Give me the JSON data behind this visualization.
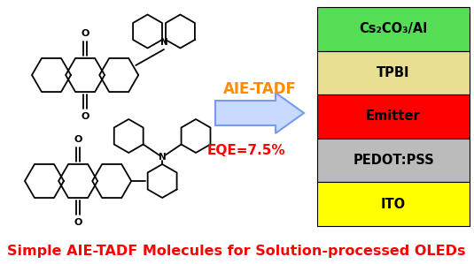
{
  "title": "Simple AIE-TADF Molecules for Solution-processed OLEDs",
  "title_color": "#FF0000",
  "title_fontsize": 11.5,
  "aie_tadf_text": "AIE-TADF",
  "aie_tadf_color": "#FF8C00",
  "aie_tadf_fontsize": 12,
  "eqe_text": "EQE=7.5%",
  "eqe_color": "#FF0000",
  "eqe_fontsize": 11,
  "layers": [
    {
      "label": "Cs₂CO₃/Al",
      "color": "#55DD55"
    },
    {
      "label": "TPBI",
      "color": "#E8E090"
    },
    {
      "label": "Emitter",
      "color": "#FF0000"
    },
    {
      "label": "PEDOT:PSS",
      "color": "#BBBBBB"
    },
    {
      "label": "ITO",
      "color": "#FFFF00"
    }
  ],
  "layer_text_color": "#000000",
  "layer_fontsize": 10.5,
  "arrow_facecolor": "#C8DAFF",
  "arrow_edgecolor": "#7799EE",
  "bg_color": "#FFFFFF",
  "struct_color": "#000000",
  "struct_lw": 1.3
}
